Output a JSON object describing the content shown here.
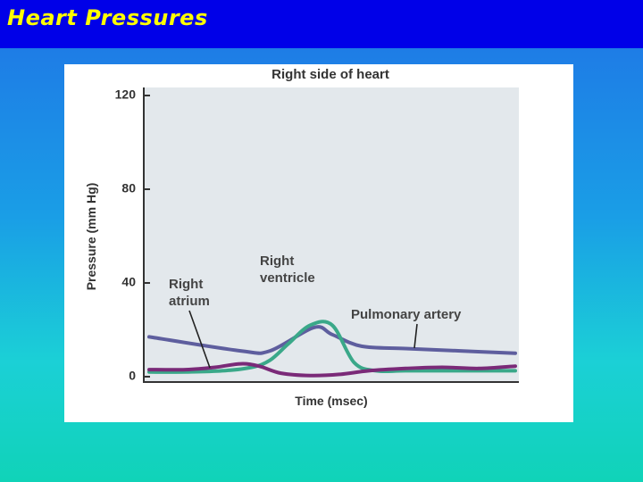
{
  "slide": {
    "title": "Heart Pressures"
  },
  "chart_data": {
    "type": "line",
    "title": "Right side of heart",
    "xlabel": "Time (msec)",
    "ylabel": "Pressure (mm Hg)",
    "ylim": [
      0,
      120
    ],
    "yticks": [
      "0",
      "40",
      "80",
      "120"
    ],
    "x_ticks_shown": false,
    "grid": false,
    "series": [
      {
        "name": "Pulmonary artery",
        "color": "#5e5e9e",
        "points": [
          [
            0,
            17
          ],
          [
            0.25,
            11
          ],
          [
            0.33,
            11
          ],
          [
            0.45,
            21
          ],
          [
            0.5,
            18
          ],
          [
            0.58,
            13
          ],
          [
            0.7,
            12
          ],
          [
            0.85,
            11
          ],
          [
            1,
            10
          ]
        ]
      },
      {
        "name": "Right ventricle",
        "color": "#3aa889",
        "points": [
          [
            0,
            2
          ],
          [
            0.1,
            2
          ],
          [
            0.2,
            2.5
          ],
          [
            0.28,
            4
          ],
          [
            0.33,
            7
          ],
          [
            0.38,
            14
          ],
          [
            0.44,
            22
          ],
          [
            0.5,
            22
          ],
          [
            0.56,
            6
          ],
          [
            0.62,
            2.5
          ],
          [
            0.7,
            2.5
          ],
          [
            0.85,
            2.5
          ],
          [
            1,
            2.5
          ]
        ]
      },
      {
        "name": "Right atrium",
        "color": "#7a2a78",
        "points": [
          [
            0,
            3
          ],
          [
            0.1,
            3
          ],
          [
            0.18,
            4
          ],
          [
            0.25,
            5.5
          ],
          [
            0.3,
            4.5
          ],
          [
            0.36,
            1.5
          ],
          [
            0.44,
            0.5
          ],
          [
            0.52,
            1
          ],
          [
            0.6,
            2.5
          ],
          [
            0.7,
            3.5
          ],
          [
            0.8,
            4
          ],
          [
            0.9,
            3.5
          ],
          [
            1,
            4.5
          ]
        ]
      }
    ],
    "annotations": {
      "right_atrium": [
        "Right",
        "atrium"
      ],
      "right_ventricle": [
        "Right",
        "ventricle"
      ],
      "pulmonary_artery": "Pulmonary artery"
    },
    "colors": {
      "plot_background": "#e3e8ec",
      "axis": "#333333"
    }
  }
}
